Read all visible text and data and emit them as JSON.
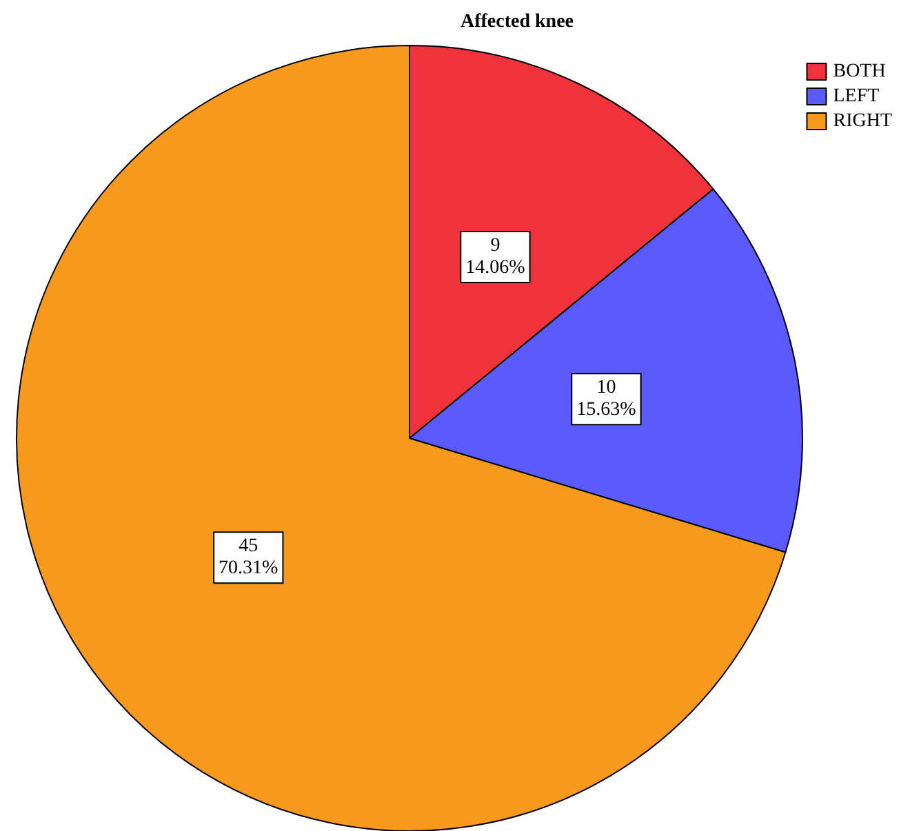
{
  "chart_data": {
    "type": "pie",
    "title": "Affected knee",
    "categories": [
      "BOTH",
      "LEFT",
      "RIGHT"
    ],
    "values": [
      9,
      10,
      45
    ],
    "colors": [
      "#f0323c",
      "#5a5aff",
      "#f7991c"
    ],
    "value_labels": [
      "9\n14.06%",
      "10\n15.63%",
      "45\n70.31%"
    ],
    "legend": "top right"
  }
}
